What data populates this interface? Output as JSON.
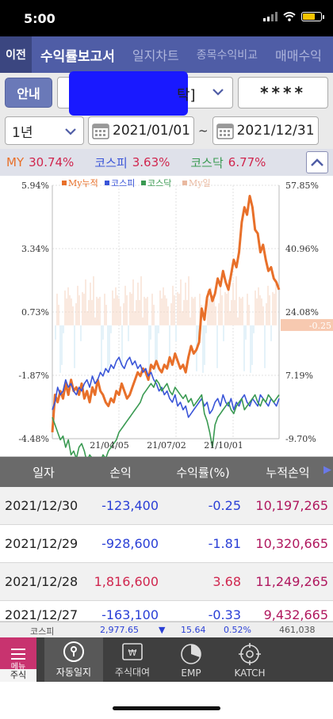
{
  "status": {
    "time": "5:00"
  },
  "nav": {
    "prev_label": "이전",
    "tabs": [
      "수익률보고서",
      "일지차트",
      "종목수익비교",
      "매매수익"
    ],
    "active": 0
  },
  "controls": {
    "guide_label": "안내",
    "account_suffix": "탁]",
    "password": "****",
    "period": "1년",
    "date_from": "2021/01/01",
    "date_sep": "~",
    "date_to": "2021/12/31"
  },
  "summary": {
    "my_label": "MY",
    "my_value": "30.74%",
    "kospi_label": "코스피",
    "kospi_value": "3.63%",
    "kosdaq_label": "코스닥",
    "kosdaq_value": "6.77%"
  },
  "chart_data": {
    "type": "line",
    "legend": [
      "My누적",
      "코스피",
      "코스닥",
      "My일"
    ],
    "left_axis_ticks": [
      "5.94%",
      "3.34%",
      "0.73%",
      "-1.87%",
      "-4.48%"
    ],
    "right_axis_ticks": [
      "57.85%",
      "40.96%",
      "24.08%",
      "7.19%",
      "-9.70%"
    ],
    "x_ticks": [
      "21/04/05",
      "21/07/02",
      "21/10/01"
    ],
    "last_daily_label": "-0.25",
    "ylim_right": [
      -9.7,
      57.85
    ],
    "ylim_left": [
      -4.48,
      5.94
    ],
    "series": [
      {
        "name": "My누적",
        "color": "#e8702a",
        "values": [
          -8,
          2,
          0,
          3,
          1,
          5,
          2,
          6,
          3,
          4,
          2,
          5,
          1,
          3,
          0,
          4,
          2,
          6,
          3,
          2,
          0,
          -1,
          1,
          0,
          3,
          2,
          5,
          3,
          1,
          2,
          4,
          6,
          8,
          7,
          9,
          8,
          6,
          10,
          9,
          11,
          9,
          8,
          10,
          9,
          12,
          10,
          13,
          11,
          9,
          10,
          8,
          12,
          15,
          13,
          14,
          16,
          25,
          22,
          28,
          30,
          27,
          29,
          33,
          31,
          35,
          32,
          30,
          34,
          38,
          36,
          40,
          48,
          52,
          50,
          55,
          52,
          46,
          45,
          40,
          42,
          38,
          35,
          36,
          33,
          32,
          30
        ]
      },
      {
        "name": "코스피",
        "color": "#3a55d8",
        "values": [
          -2,
          0,
          4,
          2,
          3,
          6,
          4,
          5,
          3,
          2,
          4,
          3,
          5,
          6,
          4,
          7,
          5,
          6,
          8,
          7,
          9,
          8,
          10,
          9,
          11,
          12,
          10,
          9,
          11,
          12,
          10,
          11,
          9,
          10,
          8,
          9,
          7,
          8,
          6,
          5,
          3,
          4,
          2,
          3,
          1,
          0,
          2,
          -1,
          0,
          -2,
          -1,
          -4,
          -3,
          -2,
          -1,
          0,
          1,
          -1,
          0,
          -3,
          -2,
          0,
          1,
          -1,
          2,
          0,
          -1,
          1,
          -2,
          0,
          -1,
          1,
          2,
          0,
          -1,
          1,
          0,
          -1,
          2,
          1,
          0,
          -1,
          1,
          0,
          -1,
          1
        ]
      },
      {
        "name": "코스닥",
        "color": "#3a9a52",
        "values": [
          -4,
          -6,
          -8,
          -10,
          -9,
          -12,
          -10,
          -14,
          -13,
          -15,
          -12,
          -11,
          -13,
          -16,
          -14,
          -15,
          -17,
          -18,
          -16,
          -14,
          -15,
          -13,
          -12,
          -11,
          -10,
          -8,
          -7,
          -6,
          -5,
          -4,
          -3,
          -2,
          -1,
          0,
          2,
          3,
          4,
          5,
          4,
          6,
          5,
          3,
          4,
          5,
          3,
          2,
          4,
          3,
          2,
          1,
          2,
          0,
          1,
          -1,
          0,
          1,
          2,
          -3,
          -5,
          -8,
          -12,
          -6,
          -4,
          -3,
          -2,
          -1,
          0,
          -2,
          -3,
          -1,
          0,
          1,
          -2,
          -1,
          0,
          1,
          2,
          0,
          -1,
          1,
          0,
          2,
          1,
          0,
          1,
          2
        ]
      }
    ]
  },
  "table": {
    "headers": [
      "일자",
      "손익",
      "수익률(%)",
      "누적손익"
    ],
    "rows": [
      {
        "date": "2021/12/30",
        "pnl": "-123,400",
        "ret": "-0.25",
        "cum": "10,197,265",
        "sign": "neg"
      },
      {
        "date": "2021/12/29",
        "pnl": "-928,600",
        "ret": "-1.81",
        "cum": "10,320,665",
        "sign": "neg"
      },
      {
        "date": "2021/12/28",
        "pnl": "1,816,600",
        "ret": "3.68",
        "cum": "11,249,265",
        "sign": "pos"
      },
      {
        "date": "2021/12/27",
        "pnl": "-163,100",
        "ret": "-0.33",
        "cum": "9,432,665",
        "sign": "neg"
      }
    ]
  },
  "ticker": {
    "name": "코스피",
    "index": "2,977.65",
    "change": "15.64",
    "rate": "0.52%",
    "volume": "461,038"
  },
  "bottom": {
    "menu_label": "메뉴",
    "menu_sub": "주식",
    "items": [
      "자동일지",
      "주식대여",
      "EMP",
      "KATCH"
    ]
  }
}
